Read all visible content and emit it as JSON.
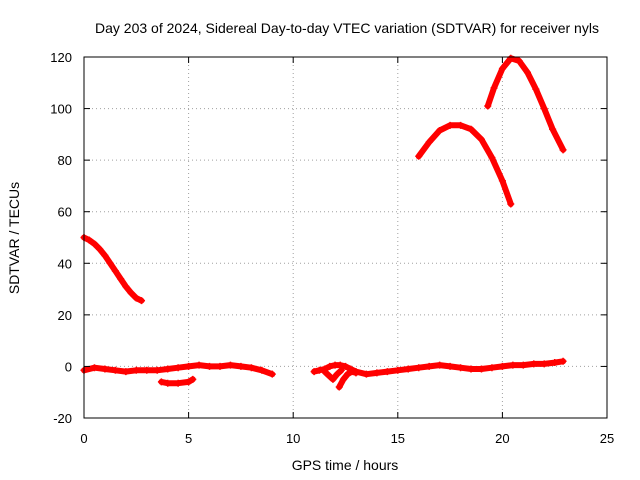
{
  "chart_data": {
    "type": "scatter",
    "title": "Day 203 of 2024, Sidereal Day-to-day VTEC variation (SDTVAR) for receiver nyls",
    "xlabel": "GPS time / hours",
    "ylabel": "SDTVAR / TECUs",
    "xlim": [
      0,
      25
    ],
    "ylim": [
      -20,
      120
    ],
    "xticks": [
      0,
      5,
      10,
      15,
      20,
      25
    ],
    "yticks": [
      -20,
      0,
      20,
      40,
      60,
      80,
      100,
      120
    ],
    "grid": true,
    "legend": "none",
    "series_color": "#ff0000",
    "series": [
      {
        "x": [
          0.0,
          0.25,
          0.5,
          0.75,
          1.0,
          1.25,
          1.5,
          1.75,
          2.0,
          2.25,
          2.5,
          2.75
        ],
        "y": [
          50.0,
          49.0,
          47.5,
          45.5,
          43.0,
          40.0,
          37.0,
          34.0,
          31.0,
          28.5,
          26.5,
          25.5
        ]
      },
      {
        "x": [
          0.0,
          0.5,
          1.0,
          1.5,
          2.0,
          2.5,
          3.0,
          3.5,
          4.0,
          4.5,
          5.0,
          5.5,
          6.0,
          6.5,
          7.0,
          7.5,
          8.0,
          8.5,
          9.0
        ],
        "y": [
          -1.5,
          -0.5,
          -1.0,
          -1.5,
          -2.0,
          -1.5,
          -1.5,
          -1.5,
          -1.0,
          -0.5,
          0.0,
          0.5,
          0.0,
          0.0,
          0.5,
          0.0,
          -0.5,
          -1.5,
          -3.0
        ]
      },
      {
        "x": [
          3.7,
          4.0,
          4.5,
          5.0,
          5.2
        ],
        "y": [
          -6.0,
          -6.5,
          -6.5,
          -6.0,
          -5.0
        ]
      },
      {
        "x": [
          11.0,
          11.25,
          11.5,
          11.75,
          12.0,
          12.25,
          12.5,
          12.75,
          13.0,
          13.5,
          14.0,
          14.5,
          15.0,
          15.5,
          16.0,
          16.5,
          17.0,
          17.5,
          18.0,
          18.5,
          19.0,
          19.5,
          20.0,
          20.5,
          21.0,
          21.5,
          22.0,
          22.5,
          22.9
        ],
        "y": [
          -2.0,
          -1.5,
          -1.0,
          0.0,
          0.5,
          0.5,
          0.0,
          -1.0,
          -2.0,
          -3.0,
          -2.5,
          -2.0,
          -1.5,
          -1.0,
          -0.5,
          0.0,
          0.5,
          0.0,
          -0.5,
          -1.0,
          -1.0,
          -0.5,
          0.0,
          0.5,
          0.5,
          1.0,
          1.0,
          1.5,
          2.0
        ]
      },
      {
        "x": [
          11.5,
          11.7,
          11.9,
          12.1,
          12.3
        ],
        "y": [
          -2.0,
          -3.5,
          -5.0,
          -3.0,
          -1.5
        ]
      },
      {
        "x": [
          12.2,
          12.4,
          12.6,
          12.8,
          13.0
        ],
        "y": [
          -8.0,
          -5.0,
          -3.0,
          -2.0,
          -2.5
        ]
      },
      {
        "x": [
          16.0,
          16.5,
          17.0,
          17.5,
          18.0,
          18.5,
          19.0,
          19.5,
          20.0,
          20.4
        ],
        "y": [
          81.5,
          87.0,
          91.5,
          93.5,
          93.5,
          92.0,
          88.0,
          81.0,
          72.0,
          63.0
        ]
      },
      {
        "x": [
          19.3,
          19.6,
          20.0,
          20.4,
          20.8,
          21.2,
          21.6,
          22.0,
          22.4,
          22.9
        ],
        "y": [
          101.0,
          108.0,
          115.5,
          119.5,
          118.5,
          114.0,
          107.5,
          100.0,
          92.0,
          84.0
        ]
      }
    ]
  }
}
